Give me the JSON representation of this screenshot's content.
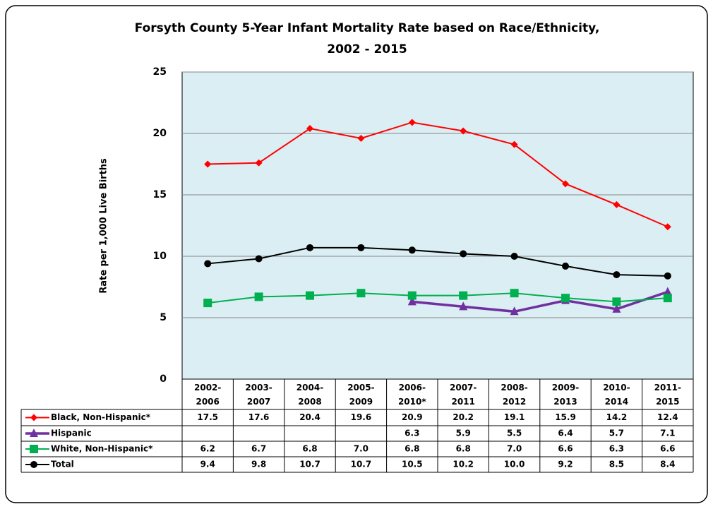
{
  "chart_data": {
    "type": "line",
    "title": "Forsyth County 5-Year Infant Mortality Rate based on Race/Ethnicity,",
    "subtitle": "2002 - 2015",
    "y_label": "Rate per 1,000 Live Births",
    "categories": [
      "2002-\n2006",
      "2003-\n2007",
      "2004-\n2008",
      "2005-\n2009",
      "2006-\n2010*",
      "2007-\n2011",
      "2008-\n2012",
      "2009-\n2013",
      "2010-\n2014",
      "2011-\n2015"
    ],
    "ylim": [
      0,
      25
    ],
    "yticks": [
      0,
      5,
      10,
      15,
      20,
      25
    ],
    "grid": true,
    "series": [
      {
        "name": "Black, Non-Hispanic*",
        "color": "#ff0000",
        "marker": "diamond",
        "values": [
          17.5,
          17.6,
          20.4,
          19.6,
          20.9,
          20.2,
          19.1,
          15.9,
          14.2,
          12.4
        ],
        "value_labels": [
          "17.5",
          "17.6",
          "20.4",
          "19.6",
          "20.9",
          "20.2",
          "19.1",
          "15.9",
          "14.2",
          "12.4"
        ]
      },
      {
        "name": "Hispanic",
        "color": "#7030a0",
        "marker": "triangle",
        "values": [
          null,
          null,
          null,
          null,
          6.3,
          5.9,
          5.5,
          6.4,
          5.7,
          7.1
        ],
        "value_labels": [
          null,
          null,
          null,
          null,
          "6.3",
          "5.9",
          "5.5",
          "6.4",
          "5.7",
          "7.1"
        ]
      },
      {
        "name": "White, Non-Hispanic*",
        "color": "#00b050",
        "marker": "square",
        "values": [
          6.2,
          6.7,
          6.8,
          7.0,
          6.8,
          6.8,
          7.0,
          6.6,
          6.3,
          6.6
        ],
        "value_labels": [
          "6.2",
          "6.7",
          "6.8",
          "7.0",
          "6.8",
          "6.8",
          "7.0",
          "6.6",
          "6.3",
          "6.6"
        ]
      },
      {
        "name": "Total",
        "color": "#000000",
        "marker": "circle",
        "values": [
          9.4,
          9.8,
          10.7,
          10.7,
          10.5,
          10.2,
          10.0,
          9.2,
          8.5,
          8.4
        ],
        "value_labels": [
          "9.4",
          "9.8",
          "10.7",
          "10.7",
          "10.5",
          "10.2",
          "10.0",
          "9.2",
          "8.5",
          "8.4"
        ]
      }
    ]
  }
}
